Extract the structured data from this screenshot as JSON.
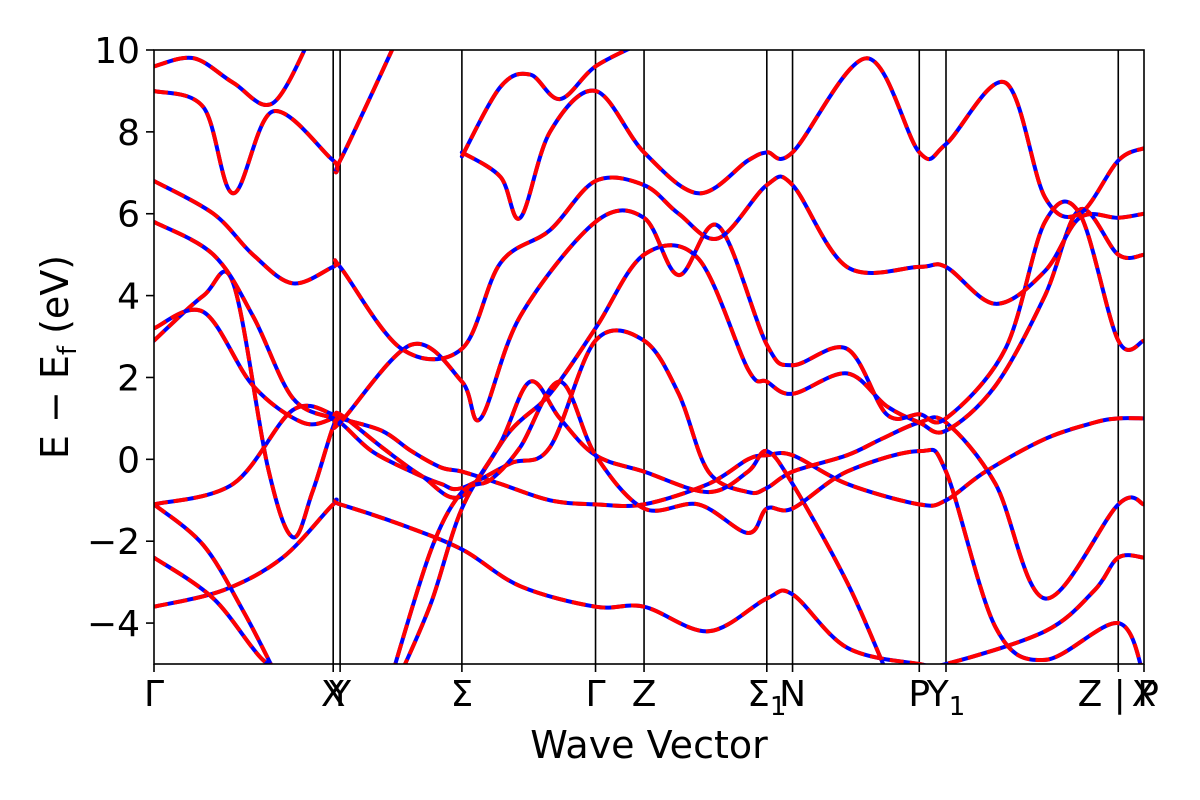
{
  "chart_data": {
    "type": "line",
    "title": "",
    "xlabel": "Wave Vector",
    "ylabel_parts": {
      "main": "E  −  E",
      "sub": "f",
      "unit": " (eV)"
    },
    "ylim": [
      -5,
      10
    ],
    "xlim": [
      0,
      1
    ],
    "grid": false,
    "y_ticks": [
      {
        "value": -4,
        "label": "−4"
      },
      {
        "value": -2,
        "label": "−2"
      },
      {
        "value": 0,
        "label": "0"
      },
      {
        "value": 2,
        "label": "2"
      },
      {
        "value": 4,
        "label": "4"
      },
      {
        "value": 6,
        "label": "6"
      },
      {
        "value": 8,
        "label": "8"
      },
      {
        "value": 10,
        "label": "10"
      }
    ],
    "kpoints": [
      {
        "x": 0.0,
        "label": "Γ",
        "sub": ""
      },
      {
        "x": 0.181,
        "label": "X",
        "sub": ""
      },
      {
        "x": 0.188,
        "label": "Y",
        "sub": ""
      },
      {
        "x": 0.311,
        "label": "Σ",
        "sub": ""
      },
      {
        "x": 0.446,
        "label": "Γ",
        "sub": ""
      },
      {
        "x": 0.495,
        "label": "Z",
        "sub": ""
      },
      {
        "x": 0.619,
        "label": "Σ",
        "sub": "1"
      },
      {
        "x": 0.645,
        "label": "N",
        "sub": ""
      },
      {
        "x": 0.773,
        "label": "P",
        "sub": ""
      },
      {
        "x": 0.8,
        "label": "Y",
        "sub": "1"
      },
      {
        "x": 0.974,
        "label": "Z | P",
        "sub": ""
      },
      {
        "x": 1.0,
        "label": "X",
        "sub": ""
      }
    ],
    "series_style": [
      {
        "color": "#0000ff",
        "linestyle": "solid"
      },
      {
        "color": "#ff0000",
        "linestyle": "dashed"
      }
    ],
    "bands": [
      [
        [
          0,
          -3.6
        ],
        [
          0.07,
          -3.2
        ],
        [
          0.13,
          -2.4
        ],
        [
          0.181,
          -1.1
        ],
        [
          0.188,
          -1.1
        ],
        [
          0.25,
          -1.6
        ],
        [
          0.311,
          -2.2
        ],
        [
          0.37,
          -3.1
        ],
        [
          0.446,
          -3.6
        ],
        [
          0.495,
          -3.6
        ],
        [
          0.56,
          -4.2
        ],
        [
          0.619,
          -3.4
        ],
        [
          0.645,
          -3.3
        ],
        [
          0.7,
          -4.6
        ],
        [
          0.773,
          -5
        ],
        [
          0.8,
          -5
        ],
        [
          0.9,
          -4.2
        ],
        [
          0.95,
          -3.2
        ],
        [
          0.974,
          -2.4
        ],
        [
          1,
          -2.4
        ]
      ],
      [
        [
          0,
          -2.4
        ],
        [
          0.06,
          -3.4
        ],
        [
          0.11,
          -4.9
        ],
        [
          0.14,
          -5.2
        ]
      ],
      [
        [
          0,
          -1.1
        ],
        [
          0.05,
          -2.1
        ],
        [
          0.09,
          -3.7
        ],
        [
          0.12,
          -5.1
        ]
      ],
      [
        [
          0,
          -1.1
        ],
        [
          0.08,
          -0.6
        ],
        [
          0.14,
          1.2
        ],
        [
          0.181,
          1.1
        ],
        [
          0.188,
          1.0
        ],
        [
          0.23,
          0.7
        ],
        [
          0.26,
          0.2
        ],
        [
          0.29,
          -0.2
        ],
        [
          0.311,
          -0.3
        ],
        [
          0.35,
          -0.6
        ],
        [
          0.4,
          -1.0
        ],
        [
          0.446,
          -1.1
        ],
        [
          0.495,
          -1.1
        ],
        [
          0.56,
          -0.6
        ],
        [
          0.6,
          0.0
        ],
        [
          0.619,
          0.1
        ],
        [
          0.645,
          0.1
        ],
        [
          0.7,
          -0.6
        ],
        [
          0.773,
          -1.1
        ],
        [
          0.8,
          -1.0
        ],
        [
          0.84,
          -0.3
        ],
        [
          0.9,
          0.5
        ],
        [
          0.95,
          0.9
        ],
        [
          0.974,
          1.0
        ],
        [
          1,
          1.0
        ]
      ],
      [
        [
          0,
          2.9
        ],
        [
          0.05,
          4.0
        ],
        [
          0.08,
          4.3
        ],
        [
          0.115,
          -0.2
        ],
        [
          0.14,
          -1.9
        ],
        [
          0.16,
          -0.8
        ],
        [
          0.181,
          0.8
        ],
        [
          0.188,
          0.9
        ],
        [
          0.22,
          0.2
        ],
        [
          0.26,
          -0.3
        ],
        [
          0.29,
          -0.6
        ],
        [
          0.311,
          -0.7
        ],
        [
          0.36,
          -0.1
        ],
        [
          0.4,
          0.3
        ],
        [
          0.446,
          2.9
        ],
        [
          0.495,
          2.9
        ],
        [
          0.53,
          1.6
        ],
        [
          0.56,
          -0.3
        ],
        [
          0.6,
          -0.8
        ],
        [
          0.619,
          -0.7
        ],
        [
          0.645,
          -0.3
        ],
        [
          0.7,
          0.1
        ],
        [
          0.735,
          0.5
        ],
        [
          0.773,
          0.9
        ],
        [
          0.8,
          0.9
        ],
        [
          0.85,
          -0.6
        ],
        [
          0.9,
          -3.4
        ],
        [
          0.974,
          -1.1
        ],
        [
          1,
          -1.1
        ]
      ],
      [
        [
          0,
          3.2
        ],
        [
          0.05,
          3.6
        ],
        [
          0.1,
          1.8
        ],
        [
          0.15,
          0.9
        ],
        [
          0.181,
          1.0
        ],
        [
          0.188,
          1.1
        ],
        [
          0.23,
          0.3
        ],
        [
          0.27,
          -0.4
        ],
        [
          0.311,
          -0.9
        ],
        [
          0.36,
          0.7
        ],
        [
          0.4,
          1.6
        ],
        [
          0.446,
          3.2
        ],
        [
          0.495,
          5.0
        ],
        [
          0.55,
          4.9
        ],
        [
          0.6,
          2.2
        ],
        [
          0.619,
          1.9
        ],
        [
          0.645,
          1.6
        ],
        [
          0.7,
          2.1
        ],
        [
          0.74,
          1.3
        ],
        [
          0.773,
          0.9
        ],
        [
          0.8,
          0.7
        ],
        [
          0.85,
          1.8
        ],
        [
          0.9,
          4.0
        ],
        [
          0.935,
          6.1
        ],
        [
          0.974,
          5.0
        ],
        [
          1,
          5.0
        ]
      ],
      [
        [
          0,
          5.8
        ],
        [
          0.06,
          5.0
        ],
        [
          0.1,
          3.5
        ],
        [
          0.14,
          1.5
        ],
        [
          0.181,
          1.0
        ],
        [
          0.188,
          0.9
        ],
        [
          0.26,
          2.8
        ],
        [
          0.311,
          1.9
        ],
        [
          0.33,
          1.0
        ],
        [
          0.37,
          3.5
        ],
        [
          0.446,
          5.8
        ],
        [
          0.495,
          5.9
        ],
        [
          0.53,
          4.5
        ],
        [
          0.57,
          5.7
        ],
        [
          0.619,
          2.8
        ],
        [
          0.645,
          2.3
        ],
        [
          0.7,
          2.7
        ],
        [
          0.74,
          1.1
        ],
        [
          0.773,
          1.1
        ],
        [
          0.8,
          1.0
        ],
        [
          0.86,
          2.7
        ],
        [
          0.9,
          5.8
        ],
        [
          0.935,
          6.0
        ],
        [
          0.974,
          2.9
        ],
        [
          1,
          2.9
        ]
      ],
      [
        [
          0,
          6.8
        ],
        [
          0.06,
          6.0
        ],
        [
          0.1,
          5.0
        ],
        [
          0.14,
          4.3
        ],
        [
          0.181,
          4.7
        ],
        [
          0.188,
          4.7
        ],
        [
          0.25,
          2.7
        ],
        [
          0.311,
          2.7
        ],
        [
          0.35,
          4.8
        ],
        [
          0.4,
          5.6
        ],
        [
          0.446,
          6.8
        ],
        [
          0.495,
          6.7
        ],
        [
          0.53,
          6.0
        ],
        [
          0.57,
          5.4
        ],
        [
          0.619,
          6.7
        ],
        [
          0.645,
          6.7
        ],
        [
          0.7,
          4.7
        ],
        [
          0.773,
          4.7
        ],
        [
          0.8,
          4.7
        ],
        [
          0.85,
          3.8
        ],
        [
          0.9,
          4.6
        ],
        [
          0.935,
          5.9
        ],
        [
          0.974,
          5.9
        ],
        [
          1,
          6.0
        ]
      ],
      [
        [
          0,
          9.0
        ],
        [
          0.05,
          8.6
        ],
        [
          0.08,
          6.5
        ],
        [
          0.12,
          8.5
        ],
        [
          0.181,
          7.3
        ],
        [
          0.188,
          7.3
        ],
        [
          0.25,
          10.5
        ]
      ],
      [
        [
          0,
          9.6
        ],
        [
          0.04,
          9.8
        ],
        [
          0.08,
          9.2
        ],
        [
          0.12,
          8.7
        ],
        [
          0.16,
          10.4
        ]
      ],
      [
        [
          0.311,
          7.5
        ],
        [
          0.35,
          6.9
        ],
        [
          0.37,
          5.9
        ],
        [
          0.4,
          8.0
        ],
        [
          0.446,
          9.0
        ],
        [
          0.495,
          7.5
        ],
        [
          0.55,
          6.5
        ],
        [
          0.6,
          7.3
        ],
        [
          0.619,
          7.5
        ],
        [
          0.645,
          7.5
        ],
        [
          0.72,
          9.8
        ],
        [
          0.773,
          7.5
        ],
        [
          0.8,
          7.7
        ],
        [
          0.86,
          9.2
        ],
        [
          0.9,
          6.4
        ],
        [
          0.935,
          6.0
        ],
        [
          0.974,
          7.3
        ],
        [
          1,
          7.6
        ]
      ],
      [
        [
          0.311,
          7.4
        ],
        [
          0.35,
          9.1
        ],
        [
          0.38,
          9.4
        ],
        [
          0.41,
          8.8
        ],
        [
          0.446,
          9.6
        ],
        [
          0.495,
          10.2
        ]
      ],
      [
        [
          0.25,
          -5.2
        ],
        [
          0.28,
          -3.5
        ],
        [
          0.311,
          -1.2
        ],
        [
          0.35,
          0.4
        ],
        [
          0.38,
          1.9
        ],
        [
          0.41,
          1.0
        ],
        [
          0.446,
          0.1
        ],
        [
          0.495,
          -0.3
        ],
        [
          0.56,
          -0.8
        ],
        [
          0.6,
          -0.3
        ],
        [
          0.619,
          0.2
        ],
        [
          0.645,
          -0.6
        ],
        [
          0.7,
          -3.0
        ],
        [
          0.74,
          -5.2
        ]
      ],
      [
        [
          0.24,
          -5.3
        ],
        [
          0.28,
          -2.2
        ],
        [
          0.311,
          -0.8
        ],
        [
          0.34,
          -0.5
        ],
        [
          0.37,
          0.3
        ],
        [
          0.41,
          1.9
        ],
        [
          0.446,
          0.1
        ],
        [
          0.495,
          -1.2
        ],
        [
          0.55,
          -1.1
        ],
        [
          0.6,
          -1.8
        ],
        [
          0.619,
          -1.2
        ],
        [
          0.645,
          -1.2
        ],
        [
          0.7,
          -0.3
        ],
        [
          0.773,
          0.2
        ],
        [
          0.8,
          -0.3
        ],
        [
          0.85,
          -4.1
        ],
        [
          0.9,
          -4.9
        ],
        [
          0.974,
          -4.0
        ],
        [
          1,
          -5.3
        ]
      ]
    ]
  }
}
